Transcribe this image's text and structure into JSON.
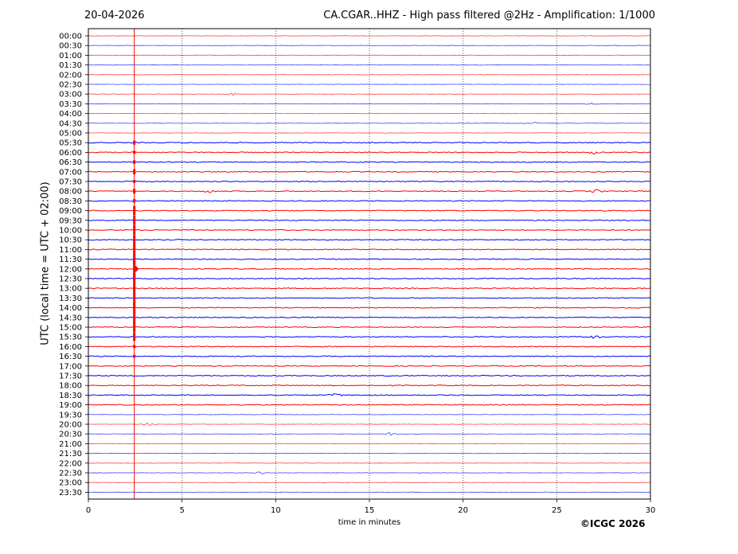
{
  "header": {
    "date": "20-04-2026",
    "title": "CA.CGAR..HHZ - High pass filtered @2Hz - Amplification: 1/1000"
  },
  "footer": {
    "copyright": "©ICGC 2026"
  },
  "chart_data": {
    "type": "line",
    "title": "CA.CGAR..HHZ - High pass filtered @2Hz - Amplification: 1/1000",
    "xlabel": "time in minutes",
    "ylabel": "UTC (local time = UTC + 02:00)",
    "xlim": [
      0,
      30
    ],
    "x_ticks": [
      0,
      5,
      10,
      15,
      20,
      25,
      30
    ],
    "row_labels": [
      "00:00",
      "00:30",
      "01:00",
      "01:30",
      "02:00",
      "02:30",
      "03:00",
      "03:30",
      "04:00",
      "04:30",
      "05:00",
      "05:30",
      "06:00",
      "06:30",
      "07:00",
      "07:30",
      "08:00",
      "08:30",
      "09:00",
      "09:30",
      "10:00",
      "10:30",
      "11:00",
      "11:30",
      "12:00",
      "12:30",
      "13:00",
      "13:30",
      "14:00",
      "14:30",
      "15:00",
      "15:30",
      "16:00",
      "16:30",
      "17:00",
      "17:30",
      "18:00",
      "18:30",
      "19:00",
      "19:30",
      "20:00",
      "20:30",
      "21:00",
      "21:30",
      "22:00",
      "22:30",
      "23:00",
      "23:30"
    ],
    "trace_colors": [
      "#ff0000",
      "#0000ff"
    ],
    "noisy_from_row": "05:30",
    "grid": "vertical dotted at x ticks",
    "event_marker_minute": 2.45,
    "event_rows": [
      {
        "row": "05:30",
        "amp": 0.4
      },
      {
        "row": "06:00",
        "amp": 0.3
      },
      {
        "row": "06:30",
        "amp": 0.35
      },
      {
        "row": "07:00",
        "amp": 0.5
      },
      {
        "row": "07:30",
        "amp": 0.3
      },
      {
        "row": "08:00",
        "amp": 0.45
      },
      {
        "row": "08:30",
        "amp": 0.35
      },
      {
        "row": "09:00",
        "amp": 0.9
      },
      {
        "row": "09:30",
        "amp": 0.9
      },
      {
        "row": "10:00",
        "amp": 0.9
      },
      {
        "row": "10:30",
        "amp": 0.9
      },
      {
        "row": "11:00",
        "amp": 1.0
      },
      {
        "row": "11:30",
        "amp": 1.0
      },
      {
        "row": "12:00",
        "amp": 2.2
      },
      {
        "row": "12:30",
        "amp": 1.0
      },
      {
        "row": "13:00",
        "amp": 1.0
      },
      {
        "row": "13:30",
        "amp": 1.0
      },
      {
        "row": "14:00",
        "amp": 1.0
      },
      {
        "row": "14:30",
        "amp": 1.0
      },
      {
        "row": "15:00",
        "amp": 1.0
      },
      {
        "row": "15:30",
        "amp": 0.8
      },
      {
        "row": "16:00",
        "amp": 0.3
      },
      {
        "row": "16:30",
        "amp": 0.3
      }
    ],
    "noise_blips": [
      {
        "row": "03:00",
        "minute": 7.7
      },
      {
        "row": "03:30",
        "minute": 26.9
      },
      {
        "row": "04:30",
        "minute": 23.7
      },
      {
        "row": "06:00",
        "minute": 27.0
      },
      {
        "row": "08:00",
        "minute": 6.5
      },
      {
        "row": "08:00",
        "minute": 27.1
      },
      {
        "row": "15:30",
        "minute": 27.0
      },
      {
        "row": "18:30",
        "minute": 13.2
      },
      {
        "row": "20:00",
        "minute": 3.2
      },
      {
        "row": "20:30",
        "minute": 16.1
      },
      {
        "row": "22:30",
        "minute": 9.2
      }
    ]
  }
}
